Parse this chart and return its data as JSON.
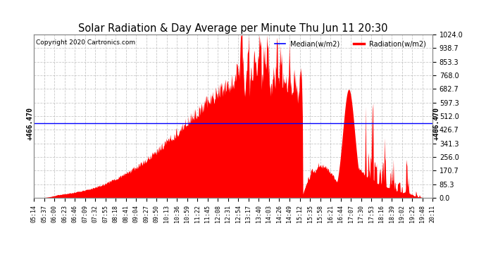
{
  "title": "Solar Radiation & Day Average per Minute Thu Jun 11 20:30",
  "copyright": "Copyright 2020 Cartronics.com",
  "median_value": 466.47,
  "ymin": 0,
  "ymax": 1024,
  "yticks": [
    0.0,
    85.3,
    170.7,
    256.0,
    341.3,
    426.7,
    512.0,
    597.3,
    682.7,
    768.0,
    853.3,
    938.7,
    1024.0
  ],
  "background_color": "#ffffff",
  "fill_color": "#ff0000",
  "median_color": "#0000ff",
  "grid_color": "#bbbbbb",
  "title_color": "#000000",
  "legend_median_color": "#0000ff",
  "legend_radiation_color": "#ff0000",
  "x_tick_labels": [
    "05:14",
    "05:37",
    "06:00",
    "06:23",
    "06:46",
    "07:09",
    "07:32",
    "07:55",
    "08:18",
    "08:41",
    "09:04",
    "09:27",
    "09:50",
    "10:13",
    "10:36",
    "10:59",
    "11:22",
    "11:45",
    "12:08",
    "12:31",
    "12:54",
    "13:17",
    "13:40",
    "14:03",
    "14:26",
    "14:49",
    "15:12",
    "15:35",
    "15:58",
    "16:21",
    "16:44",
    "17:07",
    "17:30",
    "17:53",
    "18:16",
    "18:39",
    "19:02",
    "19:25",
    "19:48",
    "20:11"
  ]
}
